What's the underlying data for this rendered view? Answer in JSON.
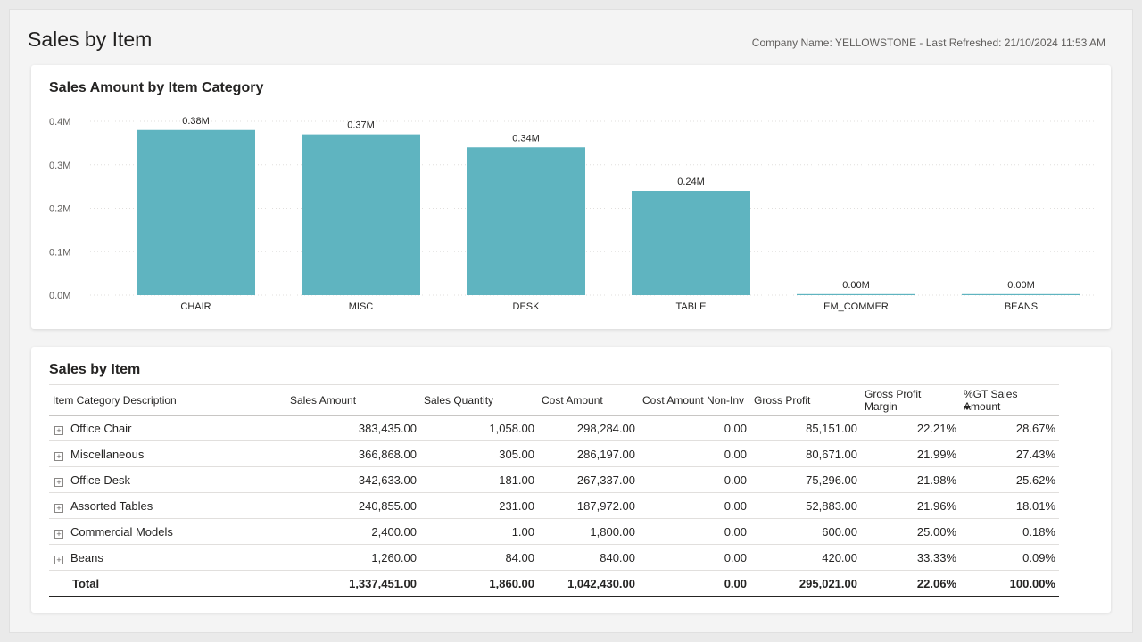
{
  "page": {
    "title": "Sales by Item",
    "meta": "Company Name: YELLOWSTONE - Last Refreshed: 21/10/2024 11:53 AM"
  },
  "chart_data": {
    "type": "bar",
    "title": "Sales Amount by Item Category",
    "categories": [
      "CHAIR",
      "MISC",
      "DESK",
      "TABLE",
      "EM_COMMER",
      "BEANS"
    ],
    "values": [
      0.38,
      0.37,
      0.34,
      0.24,
      0.0,
      0.0
    ],
    "data_labels": [
      "0.38M",
      "0.37M",
      "0.34M",
      "0.24M",
      "0.00M",
      "0.00M"
    ],
    "yticks": [
      "0.0M",
      "0.1M",
      "0.2M",
      "0.3M",
      "0.4M"
    ],
    "ylim": [
      0,
      0.4
    ],
    "xlabel": "",
    "ylabel": "",
    "grid": true,
    "bar_color": "#5fb4c0"
  },
  "table": {
    "title": "Sales by Item",
    "columns": [
      "Item Category Description",
      "Sales Amount",
      "Sales Quantity",
      "Cost Amount",
      "Cost Amount Non-Inv",
      "Gross Profit",
      "Gross Profit Margin",
      "%GT Sales Amount"
    ],
    "rows": [
      [
        "Office Chair",
        "383,435.00",
        "1,058.00",
        "298,284.00",
        "0.00",
        "85,151.00",
        "22.21%",
        "28.67%"
      ],
      [
        "Miscellaneous",
        "366,868.00",
        "305.00",
        "286,197.00",
        "0.00",
        "80,671.00",
        "21.99%",
        "27.43%"
      ],
      [
        "Office Desk",
        "342,633.00",
        "181.00",
        "267,337.00",
        "0.00",
        "75,296.00",
        "21.98%",
        "25.62%"
      ],
      [
        "Assorted Tables",
        "240,855.00",
        "231.00",
        "187,972.00",
        "0.00",
        "52,883.00",
        "21.96%",
        "18.01%"
      ],
      [
        "Commercial Models",
        "2,400.00",
        "1.00",
        "1,800.00",
        "0.00",
        "600.00",
        "25.00%",
        "0.18%"
      ],
      [
        "Beans",
        "1,260.00",
        "84.00",
        "840.00",
        "0.00",
        "420.00",
        "33.33%",
        "0.09%"
      ]
    ],
    "total": [
      "Total",
      "1,337,451.00",
      "1,860.00",
      "1,042,430.00",
      "0.00",
      "295,021.00",
      "22.06%",
      "100.00%"
    ],
    "expand_icon": "plus-box-icon",
    "sort_icon": "sort-descending-icon"
  }
}
